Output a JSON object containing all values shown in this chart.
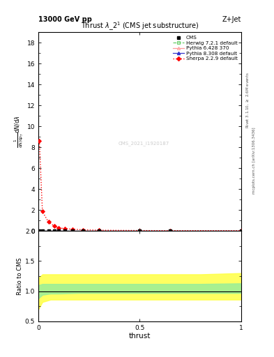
{
  "title": "Thrust $\\lambda\\_2^1$ (CMS jet substructure)",
  "header_left": "13000 GeV pp",
  "header_right": "Z+Jet",
  "xlabel": "thrust",
  "watermark": "CMS_2021_I1920187",
  "ylim_main": [
    0,
    19
  ],
  "ylim_ratio": [
    0.5,
    2.0
  ],
  "xlim": [
    0,
    1
  ],
  "sherpa_x": [
    0.005,
    0.02,
    0.05,
    0.08,
    0.1,
    0.13,
    0.17,
    0.22,
    0.3,
    0.5,
    0.65,
    1.0
  ],
  "sherpa_y": [
    8.6,
    1.85,
    0.85,
    0.45,
    0.3,
    0.22,
    0.16,
    0.11,
    0.07,
    0.04,
    0.03,
    0.03
  ],
  "cms_x": [
    0.005,
    0.02,
    0.05,
    0.08,
    0.1,
    0.13,
    0.17,
    0.22,
    0.3,
    0.5,
    0.65,
    1.0
  ],
  "cms_y": [
    0.03,
    0.03,
    0.03,
    0.03,
    0.03,
    0.03,
    0.03,
    0.03,
    0.03,
    0.03,
    0.03,
    0.03
  ],
  "herwig_x": [
    0.005,
    0.02,
    0.05,
    0.08,
    0.1,
    0.13,
    0.17,
    0.22,
    0.3,
    0.5,
    0.65,
    1.0
  ],
  "herwig_y": [
    0.03,
    0.03,
    0.03,
    0.03,
    0.03,
    0.03,
    0.03,
    0.03,
    0.03,
    0.03,
    0.03,
    0.03
  ],
  "py6_x": [
    0.005,
    0.02,
    0.05,
    0.08,
    0.1,
    0.13,
    0.17,
    0.22,
    0.3,
    0.5,
    0.65,
    1.0
  ],
  "py6_y": [
    0.03,
    0.03,
    0.03,
    0.03,
    0.03,
    0.03,
    0.03,
    0.03,
    0.03,
    0.03,
    0.03,
    0.03
  ],
  "py8_x": [
    0.005,
    0.02,
    0.05,
    0.08,
    0.1,
    0.13,
    0.17,
    0.22,
    0.3,
    0.5,
    0.65,
    1.0
  ],
  "py8_y": [
    0.03,
    0.03,
    0.03,
    0.03,
    0.03,
    0.03,
    0.03,
    0.03,
    0.03,
    0.03,
    0.03,
    0.03
  ],
  "ratio_x": [
    0.0,
    0.02,
    0.04,
    0.06,
    0.1,
    0.2,
    0.3,
    0.5,
    0.65,
    0.8,
    1.0
  ],
  "green_low": [
    0.88,
    0.94,
    0.95,
    0.96,
    0.96,
    0.97,
    0.97,
    0.97,
    0.97,
    0.97,
    0.97
  ],
  "green_high": [
    1.1,
    1.12,
    1.12,
    1.12,
    1.12,
    1.12,
    1.12,
    1.12,
    1.12,
    1.12,
    1.13
  ],
  "yellow_low": [
    0.7,
    0.82,
    0.84,
    0.86,
    0.86,
    0.86,
    0.86,
    0.86,
    0.86,
    0.86,
    0.86
  ],
  "yellow_high": [
    1.22,
    1.28,
    1.28,
    1.28,
    1.28,
    1.28,
    1.28,
    1.28,
    1.28,
    1.28,
    1.3
  ],
  "yticks_main": [
    0,
    2,
    4,
    6,
    8,
    10,
    12,
    14,
    16,
    18
  ],
  "xticks": [
    0,
    0.5,
    1
  ],
  "xticklabels": [
    "0",
    "0.5",
    "1"
  ],
  "yticks_ratio": [
    0.5,
    1.0,
    1.5,
    2.0
  ]
}
